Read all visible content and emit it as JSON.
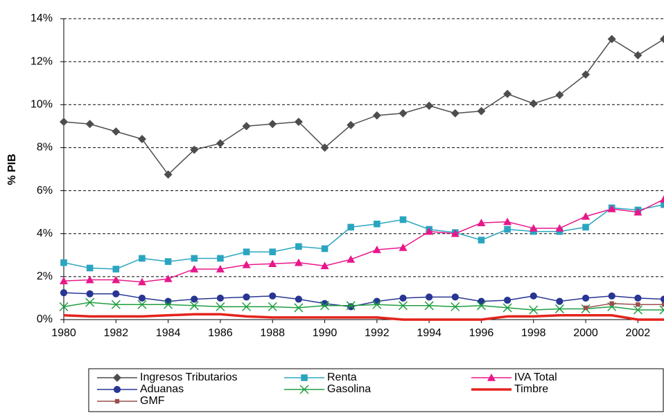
{
  "chart_data": {
    "type": "line",
    "y_label": "% PIB",
    "x": [
      1980,
      1981,
      1982,
      1983,
      1984,
      1985,
      1986,
      1987,
      1988,
      1989,
      1990,
      1991,
      1992,
      1993,
      1994,
      1995,
      1996,
      1997,
      1998,
      1999,
      2000,
      2001,
      2002,
      2003
    ],
    "xlim": [
      1980,
      2003
    ],
    "xticks": [
      1980,
      1982,
      1984,
      1986,
      1988,
      1990,
      1992,
      1994,
      1996,
      1998,
      2000,
      2002
    ],
    "ylim": [
      0,
      14
    ],
    "yticks": [
      {
        "value": 0,
        "label": "0%"
      },
      {
        "value": 2,
        "label": "2%"
      },
      {
        "value": 4,
        "label": "4%"
      },
      {
        "value": 6,
        "label": "6%"
      },
      {
        "value": 8,
        "label": "8%"
      },
      {
        "value": 10,
        "label": "10%"
      },
      {
        "value": 12,
        "label": "12%"
      },
      {
        "value": 14,
        "label": "14%"
      }
    ],
    "grid": true,
    "series": [
      {
        "name": "Ingresos Tributarios",
        "color": "#4d4d4d",
        "marker": "diamond",
        "values": [
          9.2,
          9.1,
          8.75,
          8.4,
          6.75,
          7.9,
          8.2,
          9.0,
          9.1,
          9.2,
          8.0,
          9.05,
          9.5,
          9.6,
          9.95,
          9.6,
          9.7,
          10.5,
          10.05,
          10.45,
          11.4,
          13.05,
          12.3,
          13.05
        ]
      },
      {
        "name": "Renta",
        "color": "#2aa5c0",
        "marker": "square",
        "values": [
          2.65,
          2.4,
          2.35,
          2.85,
          2.7,
          2.85,
          2.85,
          3.15,
          3.15,
          3.4,
          3.3,
          4.3,
          4.45,
          4.65,
          4.2,
          4.05,
          3.7,
          4.2,
          4.1,
          4.1,
          4.3,
          5.2,
          5.1,
          5.35
        ]
      },
      {
        "name": "IVA Total",
        "color": "#e8178a",
        "marker": "triangle",
        "values": [
          1.8,
          1.85,
          1.85,
          1.75,
          1.9,
          2.35,
          2.35,
          2.55,
          2.6,
          2.65,
          2.5,
          2.8,
          3.25,
          3.35,
          4.1,
          4.0,
          4.5,
          4.55,
          4.25,
          4.25,
          4.8,
          5.15,
          5.0,
          5.6
        ]
      },
      {
        "name": "Aduanas",
        "color": "#283593",
        "marker": "circle",
        "values": [
          1.25,
          1.2,
          1.2,
          1.0,
          0.85,
          0.95,
          1.0,
          1.05,
          1.1,
          0.95,
          0.75,
          0.6,
          0.85,
          1.0,
          1.05,
          1.05,
          0.85,
          0.9,
          1.1,
          0.85,
          1.0,
          1.1,
          1.0,
          0.95
        ]
      },
      {
        "name": "Gasolina",
        "color": "#1e9e3e",
        "marker": "x",
        "values": [
          0.6,
          0.8,
          0.7,
          0.7,
          0.7,
          0.65,
          0.6,
          0.6,
          0.6,
          0.55,
          0.65,
          0.65,
          0.7,
          0.65,
          0.65,
          0.6,
          0.65,
          0.55,
          0.45,
          0.5,
          0.5,
          0.6,
          0.45,
          0.45
        ]
      },
      {
        "name": "Timbre",
        "color": "#e3231b",
        "marker": "none",
        "values": [
          0.2,
          0.15,
          0.15,
          0.15,
          0.2,
          0.25,
          0.25,
          0.15,
          0.1,
          0.1,
          0.1,
          0.1,
          0.1,
          0.0,
          0.0,
          0.0,
          0.0,
          0.15,
          0.15,
          0.2,
          0.2,
          0.2,
          0.0,
          0.0
        ]
      },
      {
        "name": "GMF",
        "color": "#9b4d4d",
        "marker": "square",
        "values": [
          null,
          null,
          null,
          null,
          null,
          null,
          null,
          null,
          null,
          null,
          null,
          null,
          null,
          null,
          null,
          null,
          null,
          null,
          null,
          null,
          0.55,
          0.75,
          0.7,
          0.7
        ]
      }
    ]
  }
}
